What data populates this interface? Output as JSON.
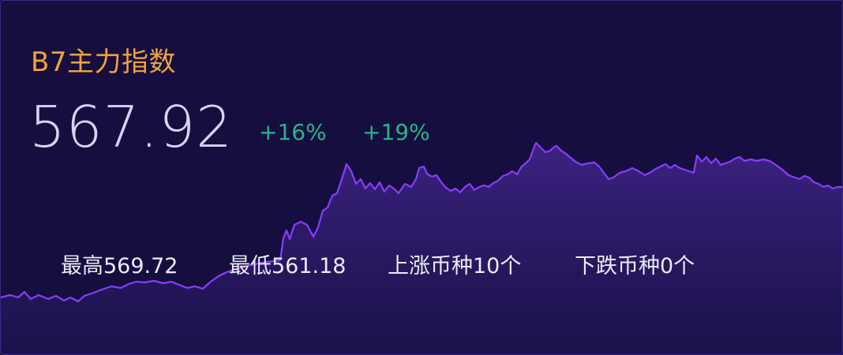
{
  "index": {
    "title": "B7主力指数",
    "price": "567.92",
    "change_1": "+16%",
    "change_2": "+19%"
  },
  "stats": {
    "high": "最高569.72",
    "low": "最低561.18",
    "up_count": "上涨币种10个",
    "down_count": "下跌币种0个"
  },
  "colors": {
    "title": "#f2a23c",
    "price": "#d9d2f2",
    "positive": "#27b48e",
    "line": "#8a3cff",
    "background": "#150e3e"
  }
}
